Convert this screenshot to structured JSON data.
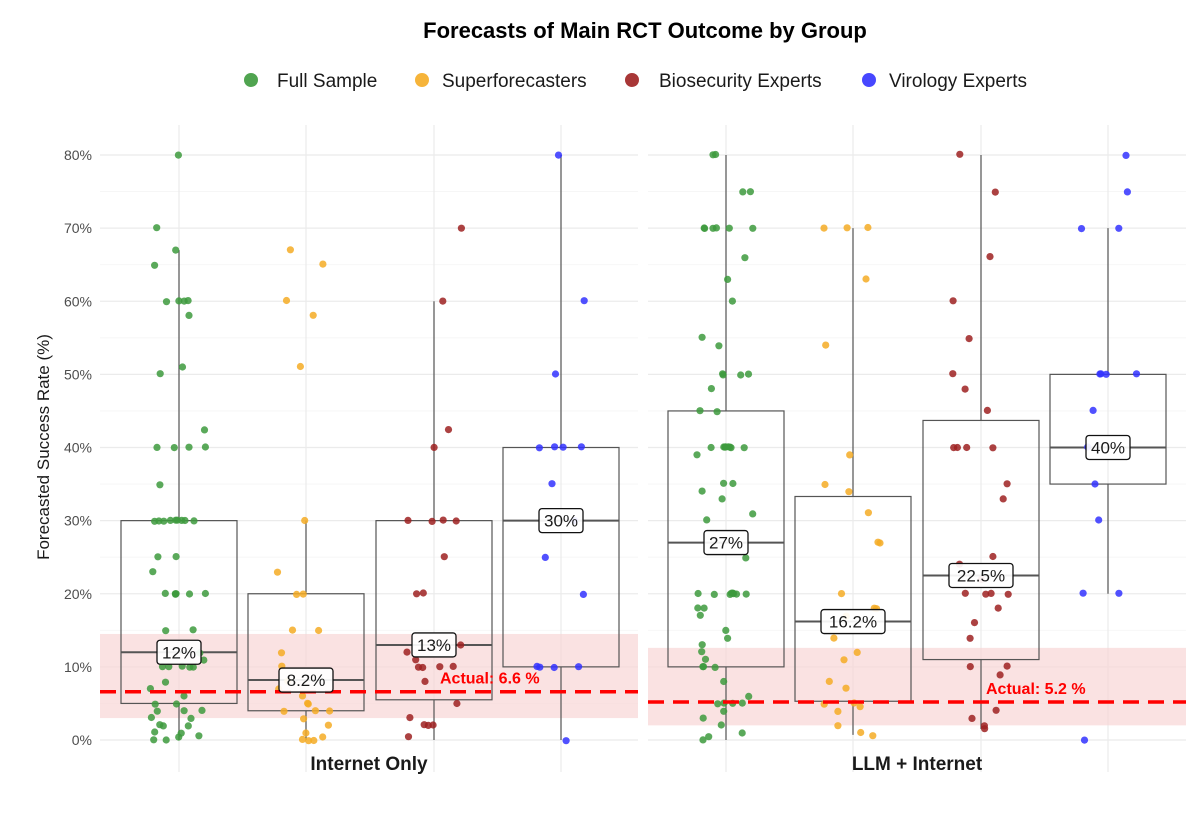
{
  "chart_data": {
    "type": "box",
    "title": "Forecasts of Main RCT Outcome by Group",
    "ylabel": "Forecasted Success Rate (%)",
    "xlabel": "",
    "ylim": [
      0,
      80
    ],
    "yticks": [
      "0%",
      "10%",
      "20%",
      "30%",
      "40%",
      "50%",
      "60%",
      "70%",
      "80%"
    ],
    "legend_position": "top",
    "legend": [
      {
        "name": "Full Sample",
        "color": "#3d9a3d"
      },
      {
        "name": "Superforecasters",
        "color": "#f5ac25"
      },
      {
        "name": "Biosecurity Experts",
        "color": "#9e2121"
      },
      {
        "name": "Virology Experts",
        "color": "#3333ff"
      }
    ],
    "panels": [
      {
        "name": "Internet Only",
        "actual": 6.6,
        "actual_label": "Actual: 6.6 %",
        "band": [
          3,
          14.5
        ],
        "groups": [
          {
            "group": "Full Sample",
            "q1": 5,
            "median": 12,
            "q3": 30,
            "whisker_low": 0,
            "whisker_high": 67,
            "median_label": "12%",
            "points": [
              80,
              70,
              67,
              65,
              60,
              60,
              60,
              60,
              58,
              51,
              50,
              42.5,
              40,
              40,
              40,
              40,
              35,
              30,
              30,
              30,
              30,
              30,
              30,
              30,
              30,
              30,
              25,
              25,
              23,
              20,
              20,
              20,
              20,
              20,
              20,
              15,
              15,
              12,
              11,
              10,
              10,
              10,
              10,
              10,
              8,
              7,
              6,
              5,
              5,
              4,
              4,
              4,
              3,
              3,
              2,
              2,
              2,
              1,
              1,
              0.5,
              0.3,
              0,
              0
            ]
          },
          {
            "group": "Superforecasters",
            "q1": 4,
            "median": 8.2,
            "q3": 20,
            "whisker_low": 0,
            "whisker_high": 30,
            "median_label": "8.2%",
            "points": [
              67,
              65,
              60,
              58,
              51,
              30,
              23,
              20,
              20,
              15,
              15,
              12,
              10,
              8,
              7,
              6,
              5,
              5,
              4,
              4,
              4,
              3,
              2,
              1,
              0.5,
              0,
              0,
              0
            ]
          },
          {
            "group": "Biosecurity Experts",
            "q1": 5.5,
            "median": 13,
            "q3": 30,
            "whisker_low": 0,
            "whisker_high": 60,
            "median_label": "13%",
            "points": [
              70,
              60,
              42.5,
              40,
              30,
              30,
              30,
              30,
              25,
              20,
              20,
              13,
              12,
              11,
              10,
              10,
              10,
              10,
              8,
              5,
              3,
              2,
              2,
              2,
              0.5
            ]
          },
          {
            "group": "Virology Experts",
            "q1": 10,
            "median": 30,
            "q3": 40,
            "whisker_low": 0,
            "whisker_high": 80,
            "median_label": "30%",
            "points": [
              80,
              60,
              50,
              40,
              40,
              40,
              40,
              35,
              30,
              25,
              20,
              10,
              10,
              10,
              10,
              0
            ]
          }
        ]
      },
      {
        "name": "LLM + Internet",
        "actual": 5.2,
        "actual_label": "Actual: 5.2 %",
        "band": [
          2,
          12.6
        ],
        "groups": [
          {
            "group": "Full Sample",
            "q1": 10,
            "median": 27,
            "q3": 45,
            "whisker_low": 0,
            "whisker_high": 80,
            "median_label": "27%",
            "points": [
              80,
              80,
              75,
              75,
              70,
              70,
              70,
              70,
              70,
              70,
              66,
              63,
              60,
              55,
              54,
              50,
              50,
              50,
              50,
              48,
              45,
              45,
              40,
              40,
              40,
              40,
              40,
              40,
              40,
              40,
              39,
              35,
              35,
              34,
              33,
              31,
              30,
              25,
              20,
              20,
              20,
              20,
              20,
              20,
              20,
              20,
              18,
              18,
              17,
              15,
              14,
              13,
              12,
              11,
              10,
              10,
              10,
              8,
              6,
              5,
              5,
              5,
              5,
              4,
              3,
              2,
              1,
              0.5,
              0
            ]
          },
          {
            "group": "Superforecasters",
            "q1": 5.3,
            "median": 16.2,
            "q3": 33.3,
            "whisker_low": 0.7,
            "whisker_high": 70,
            "median_label": "16.2%",
            "points": [
              70,
              70,
              70,
              63,
              54,
              39,
              35,
              34,
              31,
              27,
              27,
              20,
              18,
              18,
              17,
              14,
              12,
              11,
              8,
              7,
              5,
              5,
              4.5,
              4,
              2,
              1,
              0.5
            ]
          },
          {
            "group": "Biosecurity Experts",
            "q1": 11,
            "median": 22.5,
            "q3": 43.7,
            "whisker_low": 1.5,
            "whisker_high": 80,
            "median_label": "22.5%",
            "points": [
              80,
              75,
              66,
              60,
              55,
              50,
              48,
              45,
              40,
              40,
              40,
              40,
              35,
              33,
              25,
              24,
              22,
              20,
              20,
              20,
              20,
              18,
              16,
              14,
              10,
              10,
              9,
              4,
              3,
              2,
              1.5
            ]
          },
          {
            "group": "Virology Experts",
            "q1": 35,
            "median": 40,
            "q3": 50,
            "whisker_low": 20,
            "whisker_high": 70,
            "median_label": "40%",
            "points": [
              80,
              75,
              70,
              70,
              50,
              50,
              50,
              50,
              45,
              40,
              35,
              30,
              20,
              20,
              0
            ]
          }
        ]
      }
    ]
  }
}
